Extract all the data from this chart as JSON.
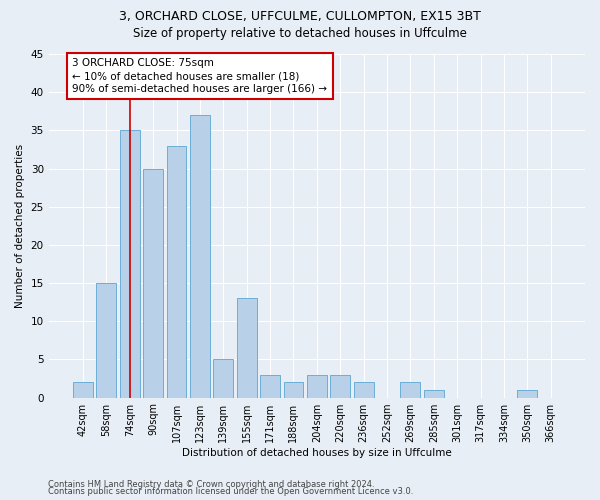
{
  "title1": "3, ORCHARD CLOSE, UFFCULME, CULLOMPTON, EX15 3BT",
  "title2": "Size of property relative to detached houses in Uffculme",
  "xlabel": "Distribution of detached houses by size in Uffculme",
  "ylabel": "Number of detached properties",
  "categories": [
    "42sqm",
    "58sqm",
    "74sqm",
    "90sqm",
    "107sqm",
    "123sqm",
    "139sqm",
    "155sqm",
    "171sqm",
    "188sqm",
    "204sqm",
    "220sqm",
    "236sqm",
    "252sqm",
    "269sqm",
    "285sqm",
    "301sqm",
    "317sqm",
    "334sqm",
    "350sqm",
    "366sqm"
  ],
  "values": [
    2,
    15,
    35,
    30,
    33,
    37,
    5,
    13,
    3,
    2,
    3,
    3,
    2,
    0,
    2,
    1,
    0,
    0,
    0,
    1,
    0
  ],
  "bar_color": "#b8d0e8",
  "bar_edgecolor": "#6aaed6",
  "vline_x": 2.0,
  "vline_color": "#cc0000",
  "annotation_line1": "3 ORCHARD CLOSE: 75sqm",
  "annotation_line2": "← 10% of detached houses are smaller (18)",
  "annotation_line3": "90% of semi-detached houses are larger (166) →",
  "annotation_box_color": "#cc0000",
  "ylim": [
    0,
    45
  ],
  "yticks": [
    0,
    5,
    10,
    15,
    20,
    25,
    30,
    35,
    40,
    45
  ],
  "footer1": "Contains HM Land Registry data © Crown copyright and database right 2024.",
  "footer2": "Contains public sector information licensed under the Open Government Licence v3.0.",
  "bg_color": "#e8eef5",
  "plot_bg_color": "#e8eef5",
  "grid_color": "#ffffff",
  "title1_fontsize": 9,
  "title2_fontsize": 8.5
}
